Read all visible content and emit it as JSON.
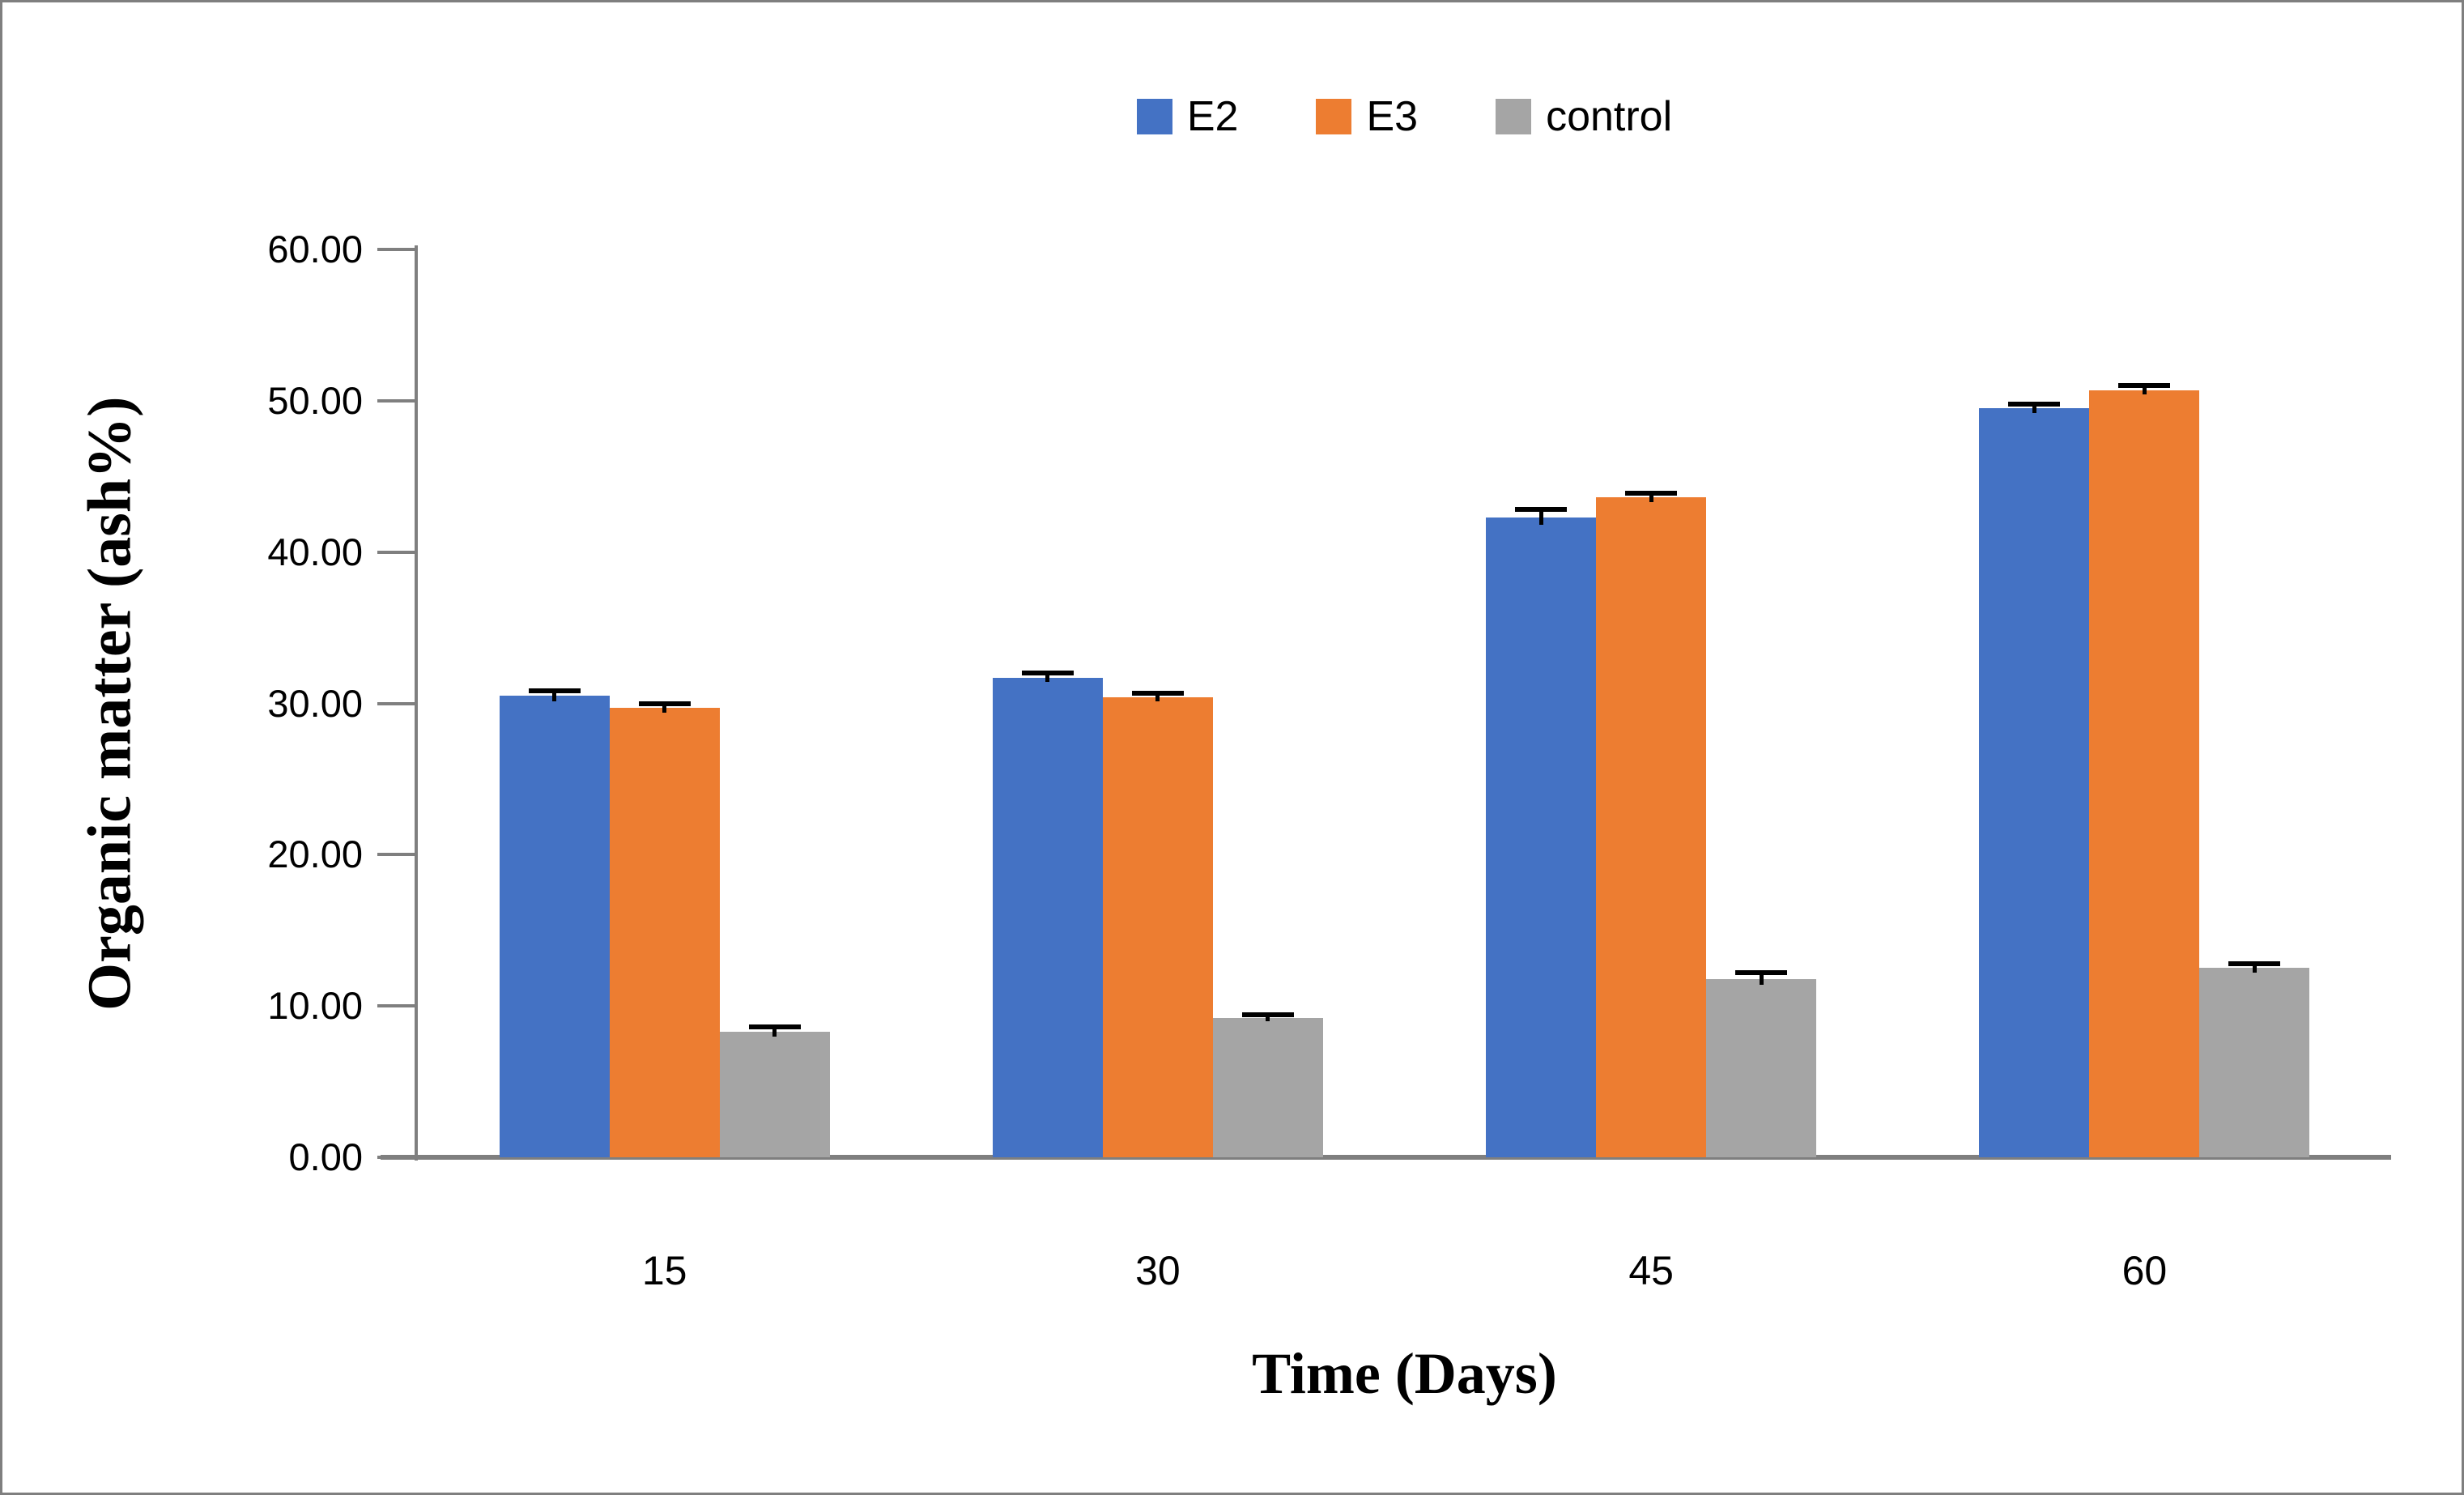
{
  "figure": {
    "background": "#FFFFFF",
    "border_color": "#7F7F7F",
    "axis_color": "#7F7F7F",
    "error_bar_color": "#000000"
  },
  "legend": {
    "position": "top-center",
    "items": [
      {
        "label": "E2",
        "color": "#4472C4"
      },
      {
        "label": "E3",
        "color": "#ED7D31"
      },
      {
        "label": "control",
        "color": "#A5A5A5"
      }
    ]
  },
  "y_axis": {
    "title": "Organic matter (ash%)",
    "tick_labels": [
      "0.00",
      "10.00",
      "20.00",
      "30.00",
      "40.00",
      "50.00",
      "60.00"
    ],
    "min": 0,
    "max": 60,
    "step": 10
  },
  "x_axis": {
    "title": "Time (Days)",
    "tick_labels": [
      "15",
      "30",
      "45",
      "60"
    ]
  },
  "chart_data": {
    "type": "bar",
    "title": "",
    "categories": [
      "15",
      "30",
      "45",
      "60"
    ],
    "series": [
      {
        "name": "E2",
        "color": "#4472C4",
        "values": [
          30.5,
          31.7,
          42.3,
          49.5
        ],
        "errors": [
          0.35,
          0.3,
          0.5,
          0.3
        ]
      },
      {
        "name": "E3",
        "color": "#ED7D31",
        "values": [
          29.7,
          30.4,
          43.6,
          50.7
        ],
        "errors": [
          0.3,
          0.25,
          0.3,
          0.3
        ]
      },
      {
        "name": "control",
        "color": "#A5A5A5",
        "values": [
          8.3,
          9.2,
          11.8,
          12.5
        ],
        "errors": [
          0.3,
          0.2,
          0.4,
          0.3
        ]
      }
    ],
    "xlabel": "Time (Days)",
    "ylabel": "Organic matter (ash%)",
    "ylim": [
      0,
      60
    ],
    "grid": false,
    "legend_position": "top",
    "error_bars": true
  }
}
